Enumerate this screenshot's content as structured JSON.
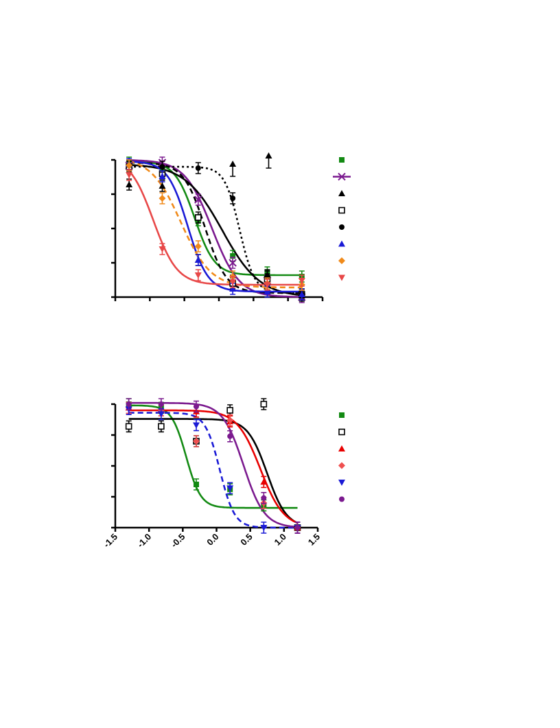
{
  "chart_data": [
    {
      "type": "scatter",
      "title": "",
      "xlabel": "",
      "ylabel": "",
      "xlim": [
        -1.5,
        1.5
      ],
      "ylim": [
        0,
        100
      ],
      "xticks": [
        -1.5,
        -1.0,
        -0.5,
        0.0,
        0.5,
        1.0,
        1.5
      ],
      "yticks": [
        0,
        25,
        50,
        75,
        100
      ],
      "grid": false,
      "legend_position": "right",
      "series": [
        {
          "color": "#138a13",
          "marker": "square",
          "line": "solid",
          "x": [
            -1.3,
            -0.82,
            -0.3,
            0.2,
            0.7,
            1.2
          ],
          "y": [
            98,
            91,
            56,
            30,
            18,
            15
          ],
          "fit": {
            "top": 99,
            "bottom": 16,
            "logec50": -0.35,
            "hill": -3
          }
        },
        {
          "color": "#7b1a8f",
          "marker": "x",
          "line": "solid",
          "x": [
            -1.3,
            -0.82,
            -0.3,
            0.2,
            0.7,
            1.2
          ],
          "y": [
            96,
            98,
            71,
            25,
            12,
            0
          ],
          "fit": {
            "top": 100,
            "bottom": 0,
            "logec50": -0.1,
            "hill": -2.2
          }
        },
        {
          "color": "#000000",
          "marker": "triangle",
          "line": "solid",
          "x": [
            -1.3,
            -0.82,
            -0.3,
            0.2,
            0.7,
            1.2
          ],
          "y": [
            82,
            81,
            27,
            12,
            16,
            1
          ],
          "fit": {
            "top": 97,
            "bottom": 0,
            "logec50": 0.05,
            "hill": -1.6
          }
        },
        {
          "color": "#000000",
          "marker": "open-square",
          "line": "dashed",
          "x": [
            -1.3,
            -0.82,
            -0.3,
            0.2,
            0.7,
            1.2
          ],
          "y": [
            95,
            90,
            58,
            10,
            13,
            2
          ],
          "fit": {
            "top": 98,
            "bottom": 3,
            "logec50": -0.2,
            "hill": -2.8
          }
        },
        {
          "color": "#000000",
          "marker": "circle",
          "line": "dotted",
          "x": [
            -1.3,
            -0.82,
            -0.3,
            0.2,
            0.7,
            1.2
          ],
          "y": [
            96,
            95,
            94,
            72,
            15,
            2
          ],
          "fit": {
            "top": 95,
            "bottom": 3,
            "logec50": 0.3,
            "hill": -4
          }
        },
        {
          "color": "#1a1ad6",
          "marker": "triangle",
          "line": "solid",
          "x": [
            -1.3,
            -0.82,
            -0.3,
            0.2,
            0.7,
            1.2
          ],
          "y": [
            97,
            88,
            27,
            6,
            4,
            2
          ],
          "fit": {
            "top": 99,
            "bottom": 4,
            "logec50": -0.45,
            "hill": -3
          }
        },
        {
          "color": "#f08a1a",
          "marker": "diamond",
          "line": "dashed",
          "x": [
            -1.3,
            -0.82,
            -0.3,
            0.2,
            0.7,
            1.2
          ],
          "y": [
            96,
            72,
            37,
            15,
            10,
            9
          ],
          "fit": {
            "top": 102,
            "bottom": 7,
            "logec50": -0.55,
            "hill": -2
          }
        },
        {
          "color": "#e84848",
          "marker": "triangle-down",
          "line": "solid",
          "x": [
            -1.3,
            -0.82,
            -0.3,
            0.2,
            0.7,
            1.2
          ],
          "y": [
            89,
            35,
            16,
            11,
            9,
            12
          ],
          "fit": {
            "top": 103,
            "bottom": 9,
            "logec50": -0.95,
            "hill": -2.5
          }
        }
      ],
      "outliers": [
        {
          "color": "#000000",
          "marker": "triangle",
          "x": 0.2,
          "y": 94
        },
        {
          "color": "#000000",
          "marker": "triangle",
          "x": 0.72,
          "y": 100
        }
      ]
    },
    {
      "type": "scatter",
      "title": "",
      "xlabel": "",
      "ylabel": "",
      "xlim": [
        -1.5,
        1.5
      ],
      "ylim": [
        0,
        100
      ],
      "xticks": [
        -1.5,
        -1.0,
        -0.5,
        0.0,
        0.5,
        1.0,
        1.5
      ],
      "xtick_labels": [
        "-1.5",
        "-1.0",
        "-0.5",
        "0.0",
        "0.5",
        "1.0",
        "1.5"
      ],
      "yticks": [
        0,
        25,
        50,
        75,
        100
      ],
      "grid": false,
      "legend_position": "right",
      "series": [
        {
          "color": "#138a13",
          "marker": "square",
          "line": "solid",
          "x": [
            -1.3,
            -0.82,
            -0.3,
            0.2,
            0.7,
            1.2
          ],
          "y": [
            100,
            97,
            35,
            31,
            18,
            0
          ],
          "fit": {
            "top": 99,
            "bottom": 16,
            "logec50": -0.45,
            "hill": -4
          }
        },
        {
          "color": "#000000",
          "marker": "open-square",
          "line": "solid",
          "x": [
            -1.3,
            -0.82,
            -0.3,
            0.2,
            0.7,
            1.2
          ],
          "y": [
            82,
            82,
            70,
            95,
            100,
            0
          ],
          "fit": {
            "top": 88,
            "bottom": 0,
            "logec50": 0.75,
            "hill": -3
          }
        },
        {
          "color": "#e80000",
          "marker": "triangle",
          "line": "solid",
          "x": [
            -1.3,
            -0.82,
            -0.3,
            0.2,
            0.7,
            1.2
          ],
          "y": [
            97,
            95,
            94,
            86,
            37,
            0
          ],
          "fit": {
            "top": 95,
            "bottom": 0,
            "logec50": 0.65,
            "hill": -2.5
          }
        },
        {
          "color": "#ef5050",
          "marker": "diamond",
          "line": "solid",
          "x": [
            -1.3,
            -0.82,
            -0.3,
            0.2,
            0.7,
            1.2
          ],
          "y": [
            97,
            95,
            70,
            87,
            20,
            0
          ],
          "fit": null
        },
        {
          "color": "#1a1ad6",
          "marker": "triangle-down",
          "line": "dashed",
          "x": [
            -1.3,
            -0.82,
            -0.3,
            0.2,
            0.7,
            1.2
          ],
          "y": [
            96,
            92,
            83,
            32,
            0,
            0
          ],
          "fit": {
            "top": 93,
            "bottom": 0,
            "logec50": 0.05,
            "hill": -4
          }
        },
        {
          "color": "#7b1a8f",
          "marker": "circle",
          "line": "solid",
          "x": [
            -1.3,
            -0.82,
            -0.3,
            0.2,
            0.7,
            1.2
          ],
          "y": [
            100,
            100,
            98,
            74,
            24,
            0
          ],
          "fit": {
            "top": 101,
            "bottom": 0,
            "logec50": 0.4,
            "hill": -2.8
          }
        }
      ]
    }
  ]
}
